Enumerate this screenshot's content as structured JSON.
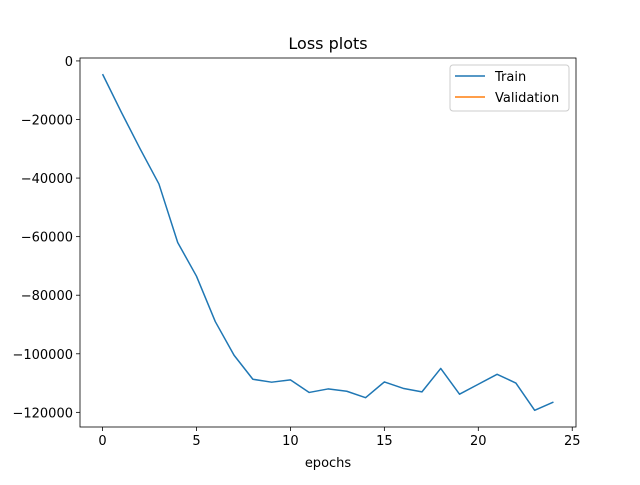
{
  "chart_data": {
    "type": "line",
    "title": "Loss plots",
    "xlabel": "epochs",
    "ylabel": "",
    "xlim": [
      -1.2,
      25.2
    ],
    "ylim": [
      -125000,
      1000
    ],
    "xticks": [
      0,
      5,
      10,
      15,
      20,
      25
    ],
    "xtick_labels": [
      "0",
      "5",
      "10",
      "15",
      "20",
      "25"
    ],
    "yticks": [
      0,
      -20000,
      -40000,
      -60000,
      -80000,
      -100000,
      -120000
    ],
    "ytick_labels": [
      "0",
      "−20000",
      "−40000",
      "−60000",
      "−80000",
      "−100000",
      "−120000"
    ],
    "grid": false,
    "legend_position": "top-right",
    "series": [
      {
        "name": "Train",
        "color": "#1f77b4",
        "x": [
          0,
          1,
          2,
          3,
          4,
          5,
          6,
          7,
          8,
          9,
          10,
          11,
          12,
          13,
          14,
          15,
          16,
          17,
          18,
          19,
          20,
          21,
          22,
          23,
          24
        ],
        "values": [
          -4500,
          -17500,
          -30000,
          -42000,
          -62000,
          -73500,
          -89000,
          -100500,
          -108700,
          -109700,
          -108900,
          -113200,
          -112000,
          -112800,
          -115000,
          -109600,
          -111800,
          -113000,
          -105000,
          -113800,
          -110400,
          -107000,
          -110000,
          -119300,
          -116500
        ]
      },
      {
        "name": "Validation",
        "color": "#ff7f0e",
        "x": [],
        "values": []
      }
    ]
  }
}
